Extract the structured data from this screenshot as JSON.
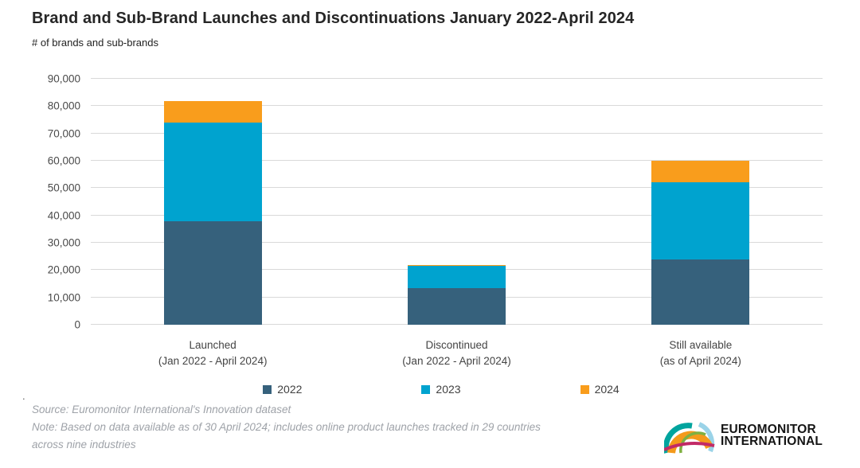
{
  "header": {
    "title": "Brand and Sub-Brand Launches and Discontinuations January 2022-April 2024",
    "subtitle": "# of brands and sub-brands"
  },
  "chart_data": {
    "type": "bar",
    "stacked": true,
    "title": "Brand and Sub-Brand Launches and Discontinuations January 2022-April 2024",
    "xlabel": "",
    "ylabel": "# of brands and sub-brands",
    "ylim": [
      0,
      90000
    ],
    "ytick_step": 10000,
    "ytick_labels": [
      "0",
      "10,000",
      "20,000",
      "30,000",
      "40,000",
      "50,000",
      "60,000",
      "70,000",
      "80,000",
      "90,000"
    ],
    "grid": true,
    "legend_position": "bottom",
    "categories": [
      {
        "label": "Launched",
        "sublabel": "(Jan 2022 - April 2024)"
      },
      {
        "label": "Discontinued",
        "sublabel": "(Jan 2022 - April 2024)"
      },
      {
        "label": "Still available",
        "sublabel": "(as of April 2024)"
      }
    ],
    "series": [
      {
        "name": "2022",
        "color": "#36617C",
        "values": [
          38000,
          13500,
          24000
        ]
      },
      {
        "name": "2023",
        "color": "#00A3CF",
        "values": [
          36000,
          8000,
          28000
        ]
      },
      {
        "name": "2024",
        "color": "#F99D1C",
        "values": [
          8000,
          500,
          8000
        ]
      }
    ],
    "totals": [
      82000,
      22000,
      60000
    ]
  },
  "footer": {
    "stray_dot": ".",
    "source": "Source: Euromonitor International's Innovation dataset",
    "note": "Note: Based on data available as of 30 April 2024; includes online product launches tracked in 29 countries across nine industries"
  },
  "logo": {
    "line1": "EUROMONITOR",
    "line2": "INTERNATIONAL",
    "arc_colors": {
      "orange": "#F49A1B",
      "teal": "#00A49E",
      "crimson": "#C22A66",
      "green": "#7FB041",
      "lightblue": "#9AD3E8"
    }
  },
  "colors": {
    "grid": "#D9D9D9",
    "axis_text": "#4A4A4A",
    "category_text": "#444444",
    "legend_text": "#404040",
    "title_text": "#262626",
    "footer_text": "#9EA2A8",
    "background": "#FFFFFF"
  }
}
